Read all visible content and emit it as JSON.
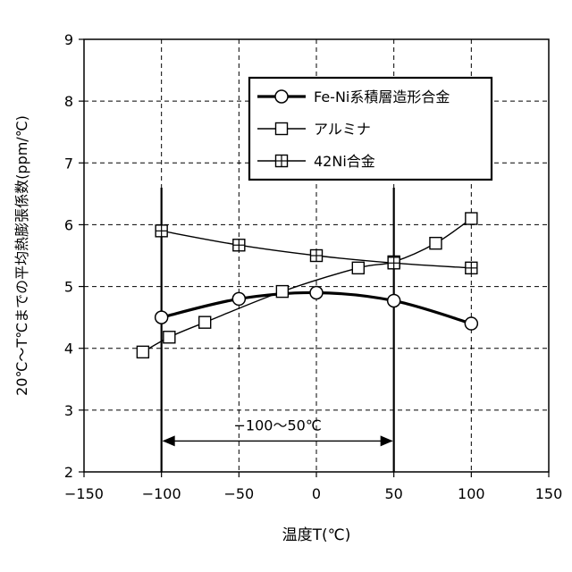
{
  "chart_data": {
    "type": "line",
    "title": "",
    "xlabel": "温度T(℃)",
    "ylabel": "20℃～T℃までの平均熱膨張係数(ppm/℃)",
    "xlim": [
      -150,
      150
    ],
    "ylim": [
      2,
      9
    ],
    "xticks": [
      -150,
      -100,
      -50,
      0,
      50,
      100,
      150
    ],
    "yticks": [
      2,
      3,
      4,
      5,
      6,
      7,
      8,
      9
    ],
    "grid": true,
    "legend_position": "top-right",
    "series": [
      {
        "name": "Fe-Ni系積層造形合金",
        "marker": "circle",
        "line": "thick",
        "x": [
          -100,
          -50,
          0,
          50,
          100
        ],
        "y": [
          4.5,
          4.8,
          4.9,
          4.77,
          4.4
        ]
      },
      {
        "name": "アルミナ",
        "marker": "square",
        "line": "thin",
        "x": [
          -112,
          -95,
          -72,
          -22,
          27,
          50,
          77,
          100
        ],
        "y": [
          3.94,
          4.18,
          4.42,
          4.92,
          5.3,
          5.4,
          5.7,
          6.1
        ]
      },
      {
        "name": "42Ni合金",
        "marker": "square-cross",
        "line": "thin",
        "x": [
          -100,
          -50,
          0,
          50,
          100
        ],
        "y": [
          5.9,
          5.67,
          5.5,
          5.38,
          5.3
        ]
      }
    ],
    "range_annotation": {
      "label": "−100～50℃",
      "from": -100,
      "to": 50
    }
  }
}
